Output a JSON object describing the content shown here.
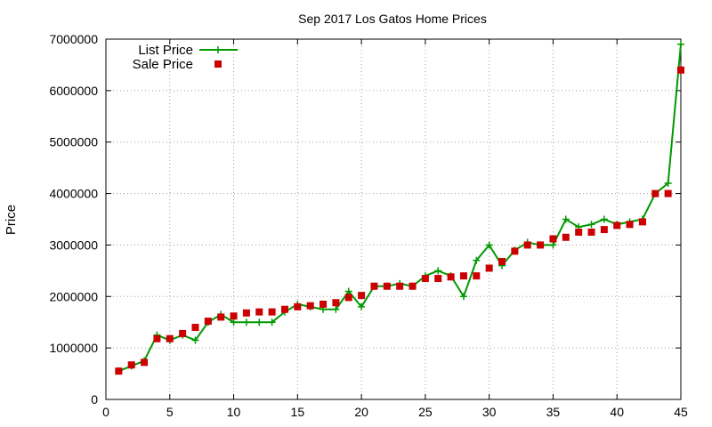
{
  "chart_data": {
    "type": "line",
    "title": "Sep 2017 Los Gatos Home Prices",
    "xlabel": "",
    "ylabel": "Price",
    "xlim": [
      0,
      45
    ],
    "ylim": [
      0,
      7000000
    ],
    "xticks": [
      0,
      5,
      10,
      15,
      20,
      25,
      30,
      35,
      40,
      45
    ],
    "yticks": [
      0,
      1000000,
      2000000,
      3000000,
      4000000,
      5000000,
      6000000,
      7000000
    ],
    "grid": true,
    "legend_position": "top-left",
    "series": [
      {
        "name": "List Price",
        "style": "line-plus",
        "color": "#009900",
        "x": [
          1,
          2,
          3,
          4,
          5,
          6,
          7,
          8,
          9,
          10,
          11,
          12,
          13,
          14,
          15,
          16,
          17,
          18,
          19,
          20,
          21,
          22,
          23,
          24,
          25,
          26,
          27,
          28,
          29,
          30,
          31,
          32,
          33,
          34,
          35,
          36,
          37,
          38,
          39,
          40,
          41,
          42,
          43,
          44,
          45
        ],
        "y": [
          550000,
          650000,
          750000,
          1250000,
          1150000,
          1250000,
          1150000,
          1500000,
          1650000,
          1500000,
          1500000,
          1500000,
          1500000,
          1700000,
          1850000,
          1800000,
          1750000,
          1750000,
          2100000,
          1800000,
          2200000,
          2200000,
          2250000,
          2200000,
          2400000,
          2500000,
          2400000,
          2000000,
          2700000,
          3000000,
          2600000,
          2900000,
          3050000,
          3000000,
          3000000,
          3500000,
          3350000,
          3400000,
          3500000,
          3400000,
          3450000,
          3500000,
          4000000,
          4200000,
          6900000
        ]
      },
      {
        "name": "Sale Price",
        "style": "square-markers",
        "color": "#cc0000",
        "x": [
          1,
          2,
          3,
          4,
          5,
          6,
          7,
          8,
          9,
          10,
          11,
          12,
          13,
          14,
          15,
          16,
          17,
          18,
          19,
          20,
          21,
          22,
          23,
          24,
          25,
          26,
          27,
          28,
          29,
          30,
          31,
          32,
          33,
          34,
          35,
          36,
          37,
          38,
          39,
          40,
          41,
          42,
          43,
          44,
          45
        ],
        "y": [
          550000,
          670000,
          720000,
          1180000,
          1180000,
          1280000,
          1400000,
          1520000,
          1600000,
          1620000,
          1680000,
          1700000,
          1700000,
          1750000,
          1800000,
          1820000,
          1850000,
          1880000,
          1980000,
          2020000,
          2200000,
          2200000,
          2200000,
          2200000,
          2350000,
          2350000,
          2380000,
          2400000,
          2400000,
          2550000,
          2680000,
          2880000,
          3000000,
          3000000,
          3120000,
          3150000,
          3250000,
          3250000,
          3300000,
          3380000,
          3400000,
          3450000,
          4000000,
          4000000,
          6400000
        ]
      }
    ]
  }
}
